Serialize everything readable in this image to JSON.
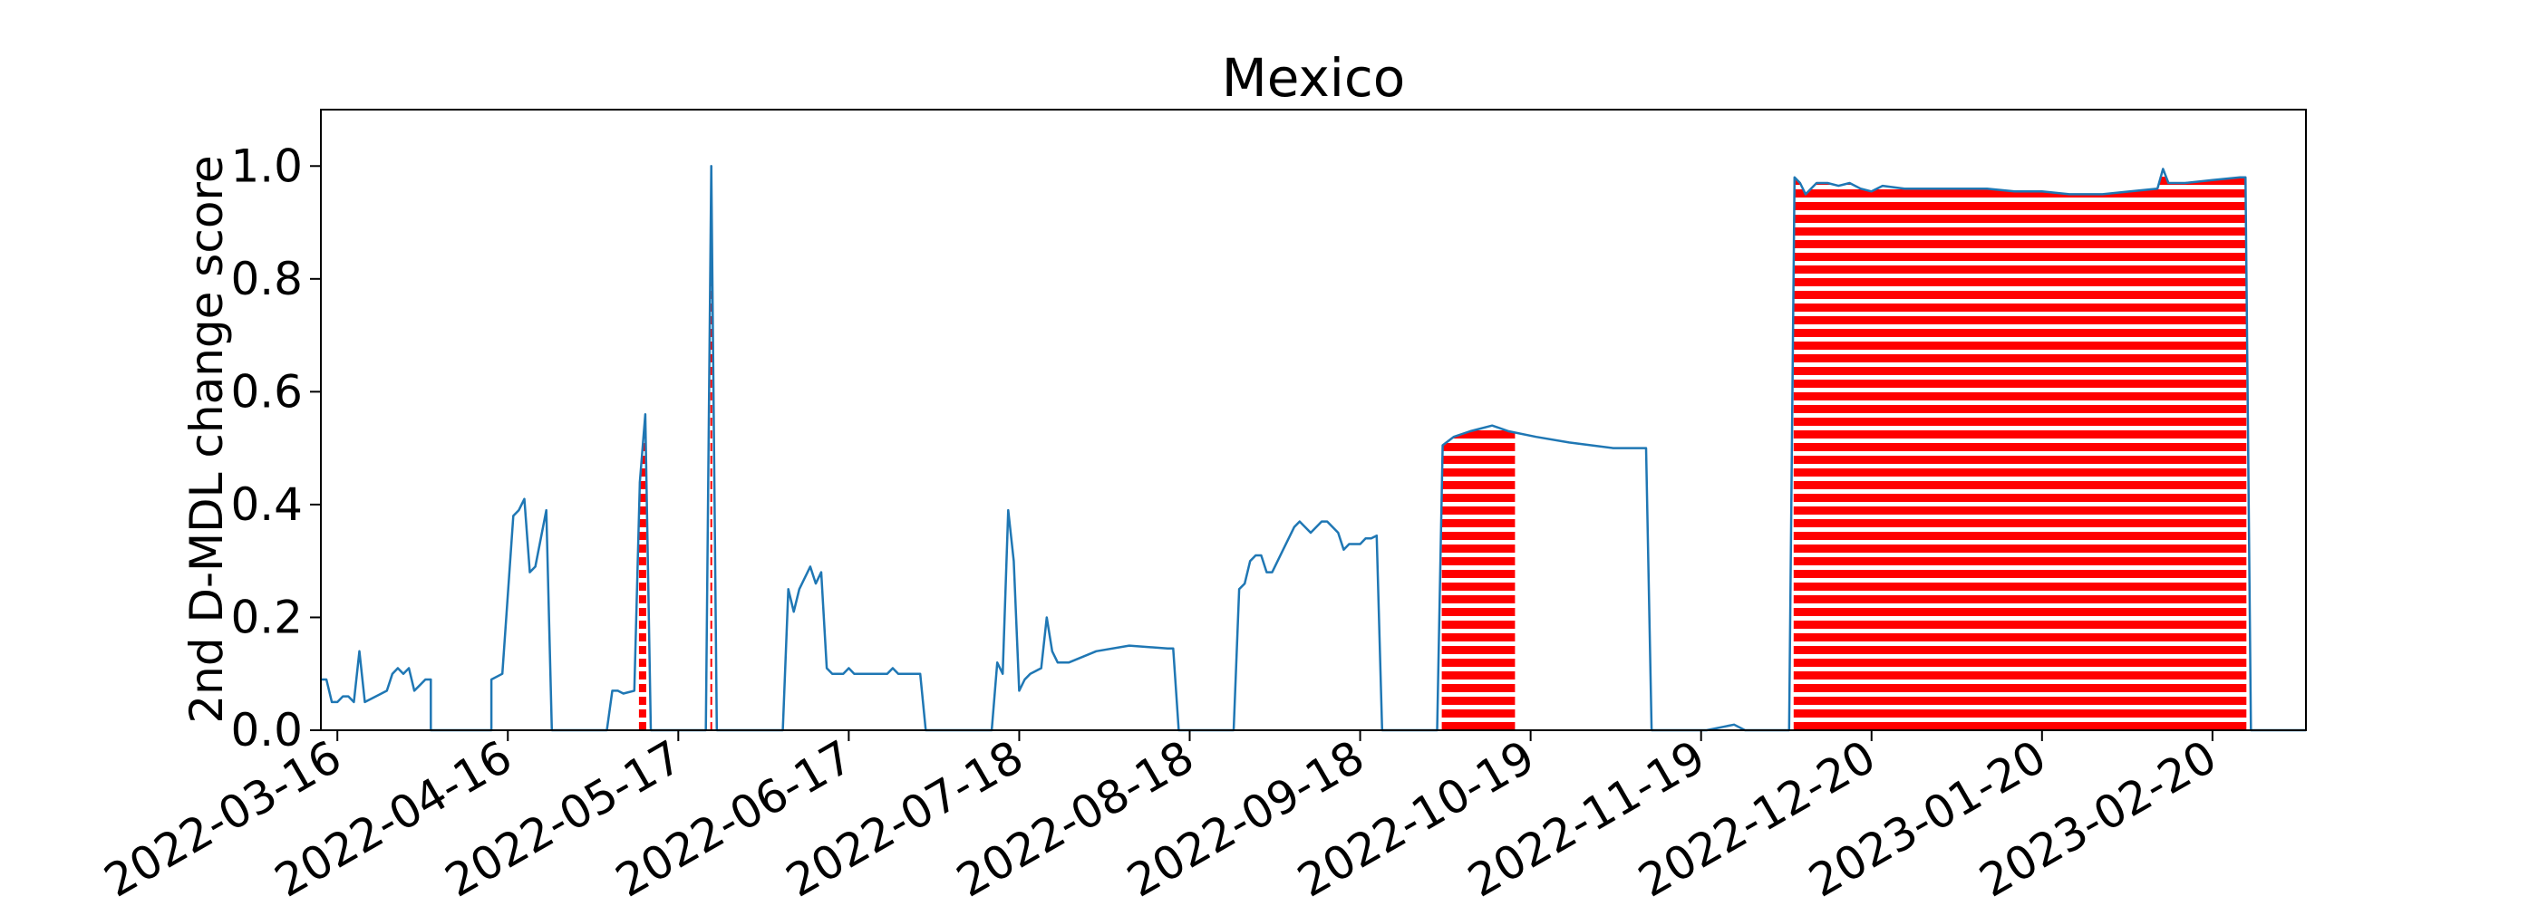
{
  "chart_data": {
    "type": "line",
    "title": "Mexico",
    "xlabel": "",
    "ylabel": "2nd D-MDL change score",
    "x_range": [
      "2022-03-13",
      "2023-03-09"
    ],
    "ylim": [
      0,
      1.1
    ],
    "grid": false,
    "legend": "none",
    "x_ticks": [
      "2022-03-16",
      "2022-04-16",
      "2022-05-17",
      "2022-06-17",
      "2022-07-18",
      "2022-08-18",
      "2022-09-18",
      "2022-10-19",
      "2022-11-19",
      "2022-12-20",
      "2023-01-20",
      "2023-02-20"
    ],
    "y_ticks": [
      "0.0",
      "0.2",
      "0.4",
      "0.6",
      "0.8",
      "1.0"
    ],
    "colors": {
      "line": "#1f77b4",
      "alarm": "#ff0000"
    },
    "series": [
      {
        "points": [
          [
            "2022-03-13",
            0.09
          ],
          [
            "2022-03-14",
            0.09
          ],
          [
            "2022-03-15",
            0.05
          ],
          [
            "2022-03-16",
            0.05
          ],
          [
            "2022-03-17",
            0.06
          ],
          [
            "2022-03-18",
            0.06
          ],
          [
            "2022-03-19",
            0.05
          ],
          [
            "2022-03-20",
            0.14
          ],
          [
            "2022-03-21",
            0.05
          ],
          [
            "2022-03-23",
            0.06
          ],
          [
            "2022-03-25",
            0.07
          ],
          [
            "2022-03-26",
            0.1
          ],
          [
            "2022-03-27",
            0.11
          ],
          [
            "2022-03-28",
            0.1
          ],
          [
            "2022-03-29",
            0.11
          ],
          [
            "2022-03-30",
            0.07
          ],
          [
            "2022-03-31",
            0.08
          ],
          [
            "2022-04-01",
            0.09
          ],
          [
            "2022-04-02",
            0.09
          ],
          [
            "2022-04-02",
            0.0
          ],
          [
            "2022-04-13",
            0.0
          ],
          [
            "2022-04-13",
            0.09
          ],
          [
            "2022-04-15",
            0.1
          ],
          [
            "2022-04-17",
            0.38
          ],
          [
            "2022-04-18",
            0.39
          ],
          [
            "2022-04-19",
            0.41
          ],
          [
            "2022-04-20",
            0.28
          ],
          [
            "2022-04-21",
            0.29
          ],
          [
            "2022-04-23",
            0.39
          ],
          [
            "2022-04-24",
            0.0
          ],
          [
            "2022-05-04",
            0.0
          ],
          [
            "2022-05-05",
            0.07
          ],
          [
            "2022-05-06",
            0.07
          ],
          [
            "2022-05-07",
            0.065
          ],
          [
            "2022-05-09",
            0.07
          ],
          [
            "2022-05-10",
            0.44
          ],
          [
            "2022-05-11",
            0.56
          ],
          [
            "2022-05-12",
            0.0
          ],
          [
            "2022-05-22",
            0.0
          ],
          [
            "2022-05-23",
            1.0
          ],
          [
            "2022-05-24",
            0.0
          ],
          [
            "2022-06-05",
            0.0
          ],
          [
            "2022-06-06",
            0.25
          ],
          [
            "2022-06-07",
            0.21
          ],
          [
            "2022-06-08",
            0.25
          ],
          [
            "2022-06-10",
            0.29
          ],
          [
            "2022-06-11",
            0.26
          ],
          [
            "2022-06-12",
            0.28
          ],
          [
            "2022-06-13",
            0.11
          ],
          [
            "2022-06-14",
            0.1
          ],
          [
            "2022-06-16",
            0.1
          ],
          [
            "2022-06-17",
            0.11
          ],
          [
            "2022-06-18",
            0.1
          ],
          [
            "2022-06-22",
            0.1
          ],
          [
            "2022-06-24",
            0.1
          ],
          [
            "2022-06-25",
            0.11
          ],
          [
            "2022-06-26",
            0.1
          ],
          [
            "2022-06-30",
            0.1
          ],
          [
            "2022-07-01",
            0.0
          ],
          [
            "2022-07-13",
            0.0
          ],
          [
            "2022-07-14",
            0.12
          ],
          [
            "2022-07-15",
            0.1
          ],
          [
            "2022-07-16",
            0.39
          ],
          [
            "2022-07-17",
            0.3
          ],
          [
            "2022-07-18",
            0.07
          ],
          [
            "2022-07-19",
            0.09
          ],
          [
            "2022-07-20",
            0.1
          ],
          [
            "2022-07-22",
            0.11
          ],
          [
            "2022-07-23",
            0.2
          ],
          [
            "2022-07-24",
            0.14
          ],
          [
            "2022-07-25",
            0.12
          ],
          [
            "2022-07-27",
            0.12
          ],
          [
            "2022-08-01",
            0.14
          ],
          [
            "2022-08-07",
            0.15
          ],
          [
            "2022-08-14",
            0.145
          ],
          [
            "2022-08-15",
            0.145
          ],
          [
            "2022-08-16",
            0.0
          ],
          [
            "2022-08-26",
            0.0
          ],
          [
            "2022-08-27",
            0.25
          ],
          [
            "2022-08-28",
            0.26
          ],
          [
            "2022-08-29",
            0.3
          ],
          [
            "2022-08-30",
            0.31
          ],
          [
            "2022-08-31",
            0.31
          ],
          [
            "2022-09-01",
            0.28
          ],
          [
            "2022-09-02",
            0.28
          ],
          [
            "2022-09-04",
            0.32
          ],
          [
            "2022-09-06",
            0.36
          ],
          [
            "2022-09-07",
            0.37
          ],
          [
            "2022-09-09",
            0.35
          ],
          [
            "2022-09-11",
            0.37
          ],
          [
            "2022-09-12",
            0.37
          ],
          [
            "2022-09-14",
            0.35
          ],
          [
            "2022-09-15",
            0.32
          ],
          [
            "2022-09-16",
            0.33
          ],
          [
            "2022-09-18",
            0.33
          ],
          [
            "2022-09-19",
            0.34
          ],
          [
            "2022-09-20",
            0.34
          ],
          [
            "2022-09-21",
            0.345
          ],
          [
            "2022-09-22",
            0.0
          ],
          [
            "2022-10-02",
            0.0
          ],
          [
            "2022-10-03",
            0.505
          ],
          [
            "2022-10-05",
            0.52
          ],
          [
            "2022-10-08",
            0.53
          ],
          [
            "2022-10-12",
            0.54
          ],
          [
            "2022-10-15",
            0.53
          ],
          [
            "2022-10-20",
            0.52
          ],
          [
            "2022-10-26",
            0.51
          ],
          [
            "2022-11-03",
            0.5
          ],
          [
            "2022-11-09",
            0.5
          ],
          [
            "2022-11-10",
            0.0
          ],
          [
            "2022-11-20",
            0.0
          ],
          [
            "2022-11-25",
            0.01
          ],
          [
            "2022-11-27",
            0.0
          ],
          [
            "2022-12-05",
            0.0
          ],
          [
            "2022-12-06",
            0.98
          ],
          [
            "2022-12-07",
            0.97
          ],
          [
            "2022-12-08",
            0.95
          ],
          [
            "2022-12-10",
            0.97
          ],
          [
            "2022-12-12",
            0.97
          ],
          [
            "2022-12-14",
            0.965
          ],
          [
            "2022-12-16",
            0.97
          ],
          [
            "2022-12-18",
            0.96
          ],
          [
            "2022-12-20",
            0.955
          ],
          [
            "2022-12-22",
            0.965
          ],
          [
            "2022-12-26",
            0.96
          ],
          [
            "2022-12-30",
            0.96
          ],
          [
            "2023-01-05",
            0.96
          ],
          [
            "2023-01-10",
            0.96
          ],
          [
            "2023-01-15",
            0.955
          ],
          [
            "2023-01-20",
            0.955
          ],
          [
            "2023-01-25",
            0.95
          ],
          [
            "2023-01-31",
            0.95
          ],
          [
            "2023-02-05",
            0.955
          ],
          [
            "2023-02-10",
            0.96
          ],
          [
            "2023-02-11",
            0.995
          ],
          [
            "2023-02-12",
            0.97
          ],
          [
            "2023-02-15",
            0.97
          ],
          [
            "2023-02-20",
            0.975
          ],
          [
            "2023-02-25",
            0.98
          ],
          [
            "2023-02-26",
            0.98
          ],
          [
            "2023-02-27",
            0.0
          ],
          [
            "2023-03-09",
            0.0
          ]
        ]
      }
    ],
    "alarm_ranges": [
      [
        "2022-05-10",
        "2022-05-11"
      ],
      [
        "2022-05-23",
        "2022-05-23"
      ],
      [
        "2022-10-03",
        "2022-10-16"
      ],
      [
        "2022-12-06",
        "2023-02-26"
      ]
    ]
  }
}
